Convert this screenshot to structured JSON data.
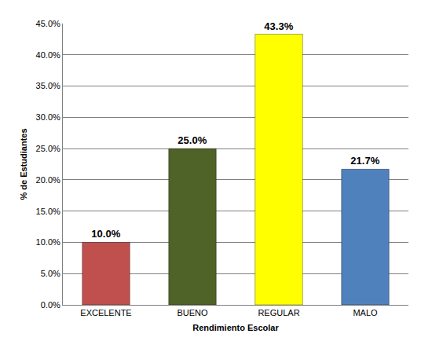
{
  "chart_data": {
    "type": "bar",
    "x_label": "Rendimiento Escolar",
    "y_label": "% de Estudiantes",
    "categories": [
      "EXCELENTE",
      "BUENO",
      "REGULAR",
      "MALO"
    ],
    "values": [
      10.0,
      25.0,
      43.3,
      21.7
    ],
    "value_labels": [
      "10.0%",
      "25.0%",
      "43.3%",
      "21.7%"
    ],
    "colors": [
      "#c0504d",
      "#4f6228",
      "#ffff00",
      "#4f81bd"
    ],
    "ylim": [
      0,
      45
    ],
    "yticks": [
      {
        "value": 0,
        "label": "0.0%"
      },
      {
        "value": 5,
        "label": "5.0%"
      },
      {
        "value": 10,
        "label": "10.0%"
      },
      {
        "value": 15,
        "label": "15.0%"
      },
      {
        "value": 20,
        "label": "20.0%"
      },
      {
        "value": 25,
        "label": "25.0%"
      },
      {
        "value": 30,
        "label": "30.0%"
      },
      {
        "value": 35,
        "label": "35.0%"
      },
      {
        "value": 40,
        "label": "40.0%"
      },
      {
        "value": 45,
        "label": "45.0%"
      }
    ],
    "grid": true,
    "data_labels": true
  }
}
